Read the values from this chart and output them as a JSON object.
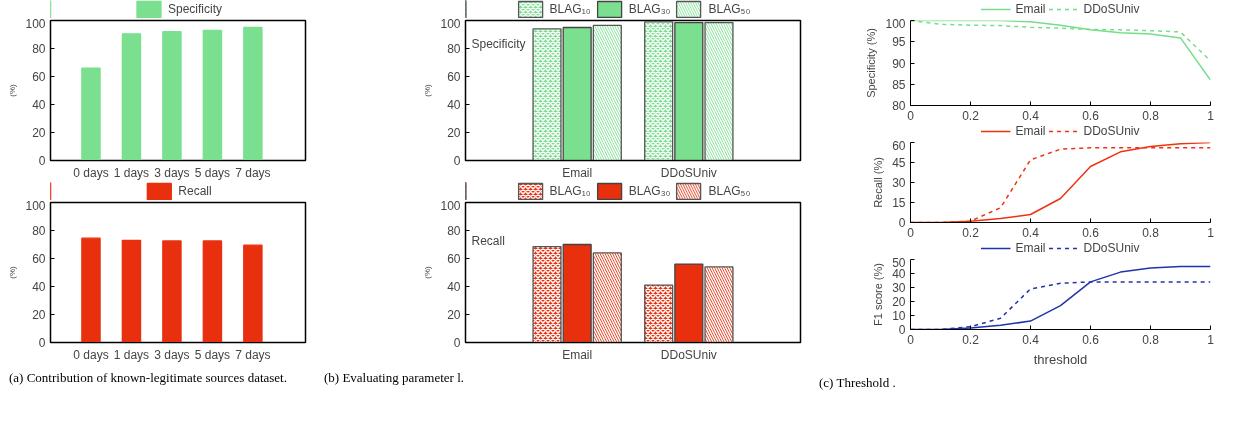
{
  "chart_data": [
    {
      "type": "bar",
      "ylabel": "(%)",
      "categories": [
        "0 days",
        "1 days",
        "3 days",
        "5 days",
        "7 days"
      ],
      "ylim": [
        0,
        100
      ],
      "yticks": [
        0,
        20,
        40,
        60,
        80,
        100
      ],
      "legend": "top",
      "series": [
        {
          "name": "Specificity",
          "color": "#7ae08f",
          "values": [
            66,
            90.5,
            92,
            93,
            95
          ]
        }
      ]
    },
    {
      "type": "bar",
      "ylabel": "(%)",
      "categories": [
        "0 days",
        "1 days",
        "3 days",
        "5 days",
        "7 days"
      ],
      "ylim": [
        0,
        100
      ],
      "yticks": [
        0,
        20,
        40,
        60,
        80,
        100
      ],
      "legend": "top",
      "series": [
        {
          "name": "Recall",
          "color": "#e8300e",
          "values": [
            74.5,
            73,
            72.5,
            72.5,
            69.5
          ]
        }
      ],
      "annotations": [
        "(a) Contribution of known-legitimate sources dataset."
      ]
    },
    {
      "type": "bar",
      "ylabel": "(%)",
      "categories": [
        "Email",
        "DDoSUniv"
      ],
      "ylim": [
        0,
        100
      ],
      "yticks": [
        0,
        20,
        40,
        60,
        80,
        100
      ],
      "legend": "top",
      "series": [
        {
          "name": "BLAG₁₀",
          "color": "#7ae08f",
          "values": [
            94,
            99
          ]
        },
        {
          "name": "BLAG₃₀",
          "color": "#7ae08f",
          "values": [
            95,
            98.5
          ]
        },
        {
          "name": "BLAG₅₀",
          "color": "#7ae08f",
          "values": [
            96.5,
            98.5
          ]
        }
      ],
      "annotations": [
        "Specificity"
      ]
    },
    {
      "type": "bar",
      "ylabel": "(%)",
      "categories": [
        "Email",
        "DDoSUniv"
      ],
      "ylim": [
        0,
        100
      ],
      "yticks": [
        0,
        20,
        40,
        60,
        80,
        100
      ],
      "legend": "top",
      "series": [
        {
          "name": "BLAG₁₀",
          "color": "#e8300e",
          "values": [
            68.5,
            41
          ]
        },
        {
          "name": "BLAG₃₀",
          "color": "#e8300e",
          "values": [
            70,
            56
          ]
        },
        {
          "name": "BLAG₅₀",
          "color": "#e8300e",
          "values": [
            64,
            54
          ]
        }
      ],
      "annotations": [
        "Recall",
        "(b) Evaluating parameter l."
      ]
    },
    {
      "type": "line",
      "ylabel": "Specificity (%)",
      "x": [
        0,
        0.1,
        0.2,
        0.3,
        0.4,
        0.5,
        0.6,
        0.7,
        0.8,
        0.9,
        1
      ],
      "xlim": [
        0,
        1
      ],
      "xticks": [
        0,
        0.2,
        0.4,
        0.6,
        0.8,
        1
      ],
      "ylim": [
        80,
        100
      ],
      "yticks": [
        80,
        85,
        90,
        95,
        100
      ],
      "legend": "top",
      "series": [
        {
          "name": "Email",
          "color": "#77dd88",
          "line_style": "solid",
          "values": [
            100,
            100,
            100,
            100,
            99.7,
            98.9,
            97.8,
            97.1,
            96.8,
            95.9,
            86
          ]
        },
        {
          "name": "DDoSUniv",
          "color": "#77dd88",
          "line_style": "dashed",
          "values": [
            100,
            99.1,
            98.9,
            98.8,
            98.4,
            98.2,
            97.9,
            97.8,
            97.6,
            97.3,
            90.5
          ]
        }
      ]
    },
    {
      "type": "line",
      "ylabel": "Recall (%)",
      "x": [
        0,
        0.1,
        0.2,
        0.3,
        0.4,
        0.5,
        0.6,
        0.7,
        0.8,
        0.9,
        1
      ],
      "xlim": [
        0,
        1
      ],
      "xticks": [
        0,
        0.2,
        0.4,
        0.6,
        0.8,
        1
      ],
      "ylim": [
        0,
        60
      ],
      "yticks": [
        0,
        15,
        30,
        45,
        60
      ],
      "legend": "top",
      "series": [
        {
          "name": "Email",
          "color": "#ee3311",
          "line_style": "solid",
          "values": [
            0,
            0,
            1,
            3,
            6,
            18,
            42,
            53,
            57,
            59,
            60
          ]
        },
        {
          "name": "DDoSUniv",
          "color": "#ee3311",
          "line_style": "dashed",
          "values": [
            0,
            0,
            1,
            11,
            47,
            55,
            56,
            56,
            56,
            56,
            56
          ]
        }
      ]
    },
    {
      "type": "line",
      "ylabel": "F1 score (%)",
      "xlabel": "threshold",
      "x": [
        0,
        0.1,
        0.2,
        0.3,
        0.4,
        0.5,
        0.6,
        0.7,
        0.8,
        0.9,
        1
      ],
      "xlim": [
        0,
        1
      ],
      "xticks": [
        0,
        0.2,
        0.4,
        0.6,
        0.8,
        1
      ],
      "ylim": [
        0,
        50
      ],
      "yticks": [
        0,
        10,
        20,
        30,
        40,
        50
      ],
      "legend": "top",
      "series": [
        {
          "name": "Email",
          "color": "#2233aa",
          "line_style": "solid",
          "values": [
            0,
            0,
            1,
            3,
            6,
            17,
            34,
            41,
            44,
            45,
            45
          ]
        },
        {
          "name": "DDoSUniv",
          "color": "#2233aa",
          "line_style": "dashed",
          "values": [
            0,
            0,
            2,
            8,
            29,
            33,
            34,
            34,
            34,
            34,
            34
          ]
        }
      ],
      "annotations": [
        "(c) Threshold ."
      ]
    }
  ]
}
